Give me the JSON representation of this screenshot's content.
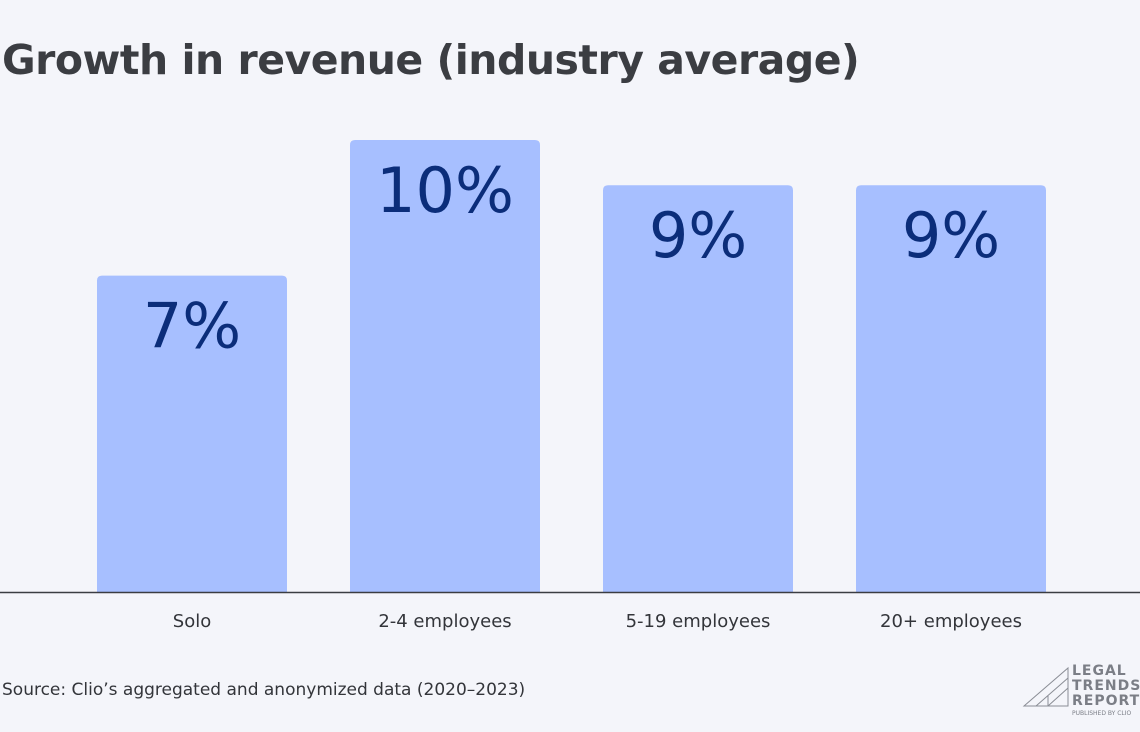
{
  "chart_data": {
    "type": "bar",
    "title": "Growth in revenue (industry average)",
    "categories": [
      "Solo",
      "2-4 employees",
      "5-19 employees",
      "20+ employees"
    ],
    "values": [
      7,
      10,
      9,
      9
    ],
    "data_labels": [
      "7%",
      "10%",
      "9%",
      "9%"
    ],
    "xlabel": "",
    "ylabel": "",
    "ylim": [
      0,
      11
    ],
    "grid": false,
    "legend": "none",
    "colors": {
      "bar": "#a7bfff",
      "data_label": "#0b2d7a",
      "axis": "#3b3d42",
      "background": "#f4f5fa"
    }
  },
  "source": "Source: Clio’s aggregated and anonymized data (2020–2023)",
  "logo": {
    "line1": "LEGAL",
    "line2": "TRENDS",
    "line3": "REPORT",
    "tagline": "PUBLISHED BY CLIO"
  }
}
